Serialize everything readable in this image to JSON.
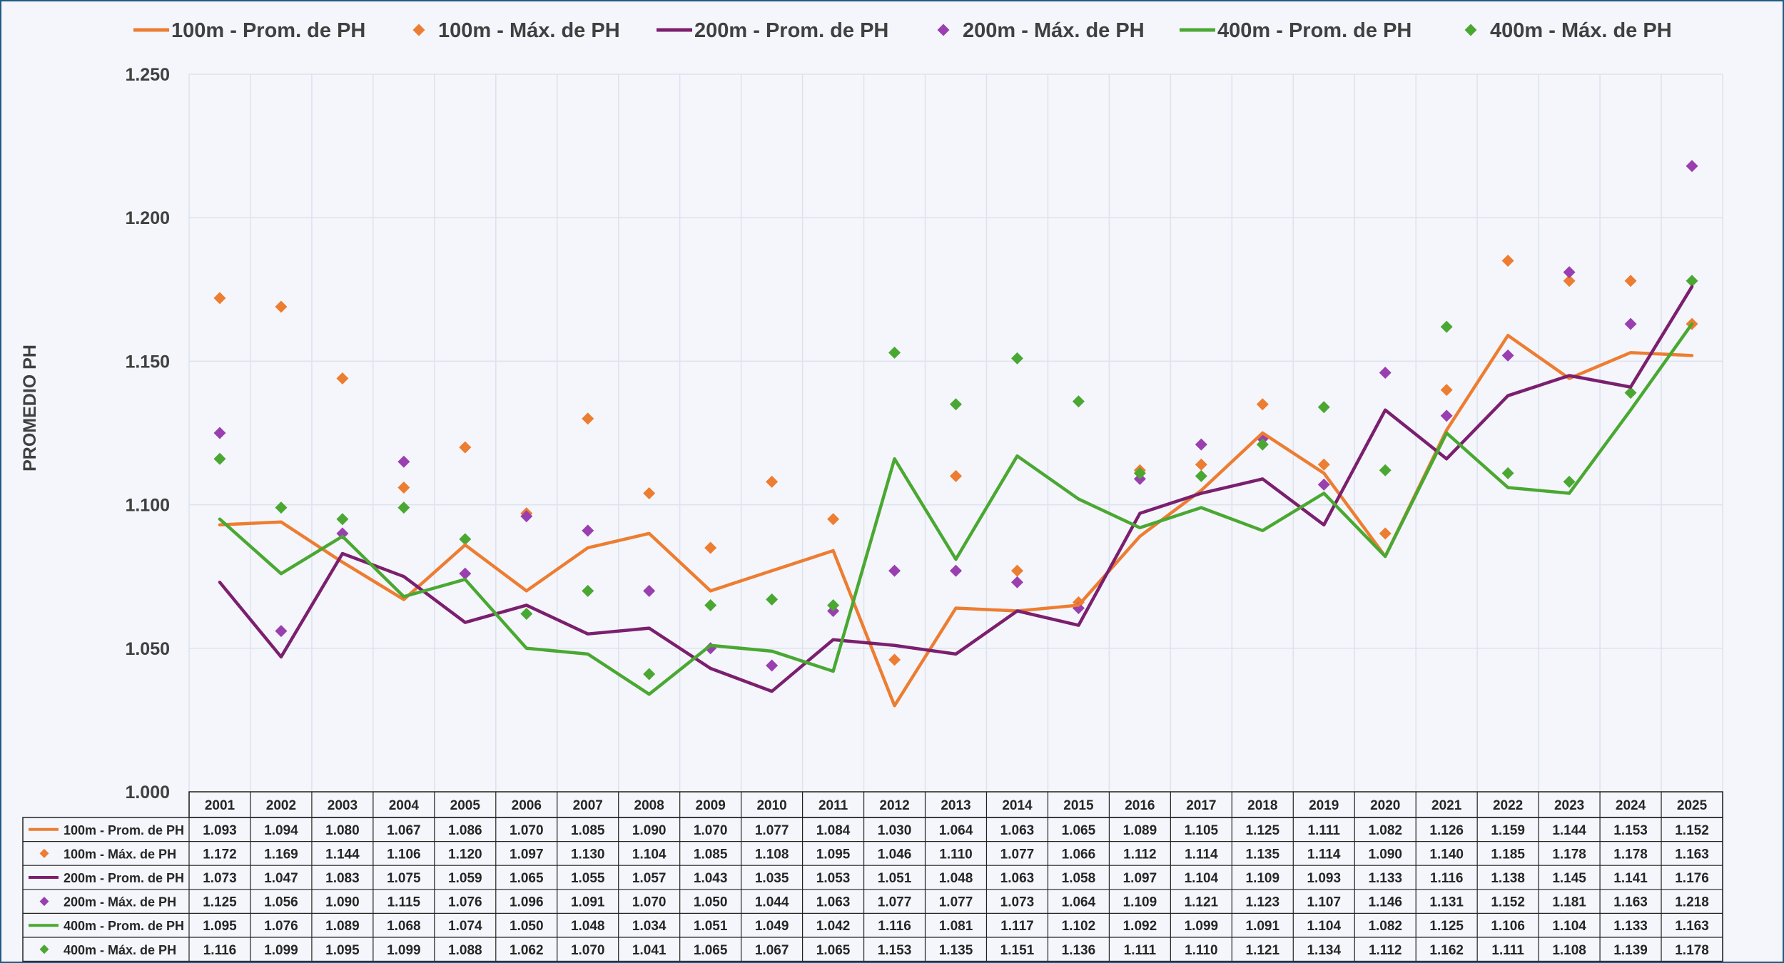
{
  "chart_data": {
    "type": "line",
    "title": "",
    "xlabel": "",
    "ylabel": "PROMEDIO PH",
    "ylim": [
      1.0,
      1.25
    ],
    "yticks": [
      "1.000",
      "1.050",
      "1.100",
      "1.150",
      "1.200",
      "1.250"
    ],
    "grid": true,
    "legend_position": "top",
    "data_table": true,
    "categories": [
      "2001",
      "2002",
      "2003",
      "2004",
      "2005",
      "2006",
      "2007",
      "2008",
      "2009",
      "2010",
      "2011",
      "2012",
      "2013",
      "2014",
      "2015",
      "2016",
      "2017",
      "2018",
      "2019",
      "2020",
      "2021",
      "2022",
      "2023",
      "2024",
      "2025"
    ],
    "series": [
      {
        "name": "100m - Prom. de PH",
        "kind": "line",
        "color": "#ed7d31",
        "values": [
          1.093,
          1.094,
          1.08,
          1.067,
          1.086,
          1.07,
          1.085,
          1.09,
          1.07,
          1.077,
          1.084,
          1.03,
          1.064,
          1.063,
          1.065,
          1.089,
          1.105,
          1.125,
          1.111,
          1.082,
          1.126,
          1.159,
          1.144,
          1.153,
          1.152
        ]
      },
      {
        "name": "100m - Máx. de PH",
        "kind": "marker",
        "color": "#ed7d31",
        "values": [
          1.172,
          1.169,
          1.144,
          1.106,
          1.12,
          1.097,
          1.13,
          1.104,
          1.085,
          1.108,
          1.095,
          1.046,
          1.11,
          1.077,
          1.066,
          1.112,
          1.114,
          1.135,
          1.114,
          1.09,
          1.14,
          1.185,
          1.178,
          1.178,
          1.163
        ]
      },
      {
        "name": "200m - Prom. de PH",
        "kind": "line",
        "color": "#7b1f6e",
        "values": [
          1.073,
          1.047,
          1.083,
          1.075,
          1.059,
          1.065,
          1.055,
          1.057,
          1.043,
          1.035,
          1.053,
          1.051,
          1.048,
          1.063,
          1.058,
          1.097,
          1.104,
          1.109,
          1.093,
          1.133,
          1.116,
          1.138,
          1.145,
          1.141,
          1.176
        ]
      },
      {
        "name": "200m - Máx. de PH",
        "kind": "marker",
        "color": "#9a3fb0",
        "values": [
          1.125,
          1.056,
          1.09,
          1.115,
          1.076,
          1.096,
          1.091,
          1.07,
          1.05,
          1.044,
          1.063,
          1.077,
          1.077,
          1.073,
          1.064,
          1.109,
          1.121,
          1.123,
          1.107,
          1.146,
          1.131,
          1.152,
          1.181,
          1.163,
          1.218
        ]
      },
      {
        "name": "400m - Prom. de PH",
        "kind": "line",
        "color": "#4aa832",
        "values": [
          1.095,
          1.076,
          1.089,
          1.068,
          1.074,
          1.05,
          1.048,
          1.034,
          1.051,
          1.049,
          1.042,
          1.116,
          1.081,
          1.117,
          1.102,
          1.092,
          1.099,
          1.091,
          1.104,
          1.082,
          1.125,
          1.106,
          1.104,
          1.133,
          1.163
        ]
      },
      {
        "name": "400m - Máx. de PH",
        "kind": "marker",
        "color": "#4aa832",
        "values": [
          1.116,
          1.099,
          1.095,
          1.099,
          1.088,
          1.062,
          1.07,
          1.041,
          1.065,
          1.067,
          1.065,
          1.153,
          1.135,
          1.151,
          1.136,
          1.111,
          1.11,
          1.121,
          1.134,
          1.112,
          1.162,
          1.111,
          1.108,
          1.139,
          1.178
        ]
      }
    ]
  }
}
